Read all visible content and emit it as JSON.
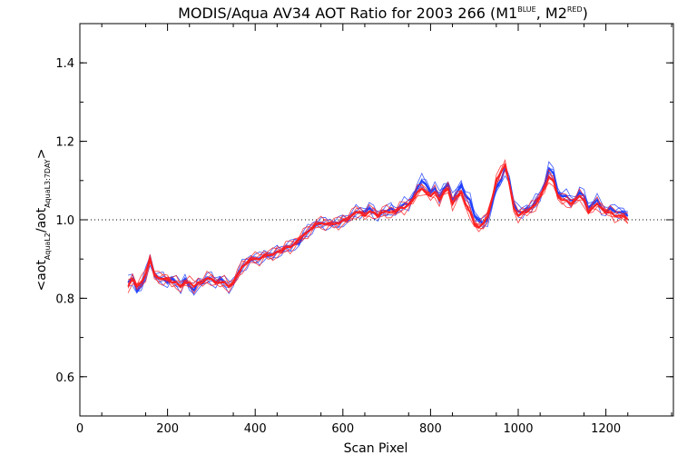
{
  "chart_data": {
    "type": "line",
    "title_main": "MODIS/Aqua AV34 AOT Ratio for 2003 266 (M1",
    "title_sup1": "BLUE",
    "title_mid": ", M2",
    "title_sup2": "RED",
    "title_end": ")",
    "xlabel": "Scan Pixel",
    "ylabel_parts": {
      "open": "<aot",
      "sub1": "AquaL2",
      "slash": "/aot",
      "sub2": "AquaL3:7DAY",
      "close": ">"
    },
    "xlim": [
      0,
      1354
    ],
    "ylim": [
      0.5,
      1.5
    ],
    "x_ticks": [
      0,
      200,
      400,
      600,
      800,
      1000,
      1200
    ],
    "x_tick_labels": [
      "0",
      "200",
      "400",
      "600",
      "800",
      "1000",
      "1200"
    ],
    "y_ticks": [
      0.6,
      0.8,
      1.0,
      1.2,
      1.4
    ],
    "y_tick_labels": [
      "0.6",
      "0.8",
      "1.0",
      "1.2",
      "1.4"
    ],
    "reference_line": 1.0,
    "colors": {
      "M1": "#1f3fff",
      "M2": "#ff1f1f",
      "axes": "#000000"
    },
    "series": [
      {
        "color": "blue",
        "x": [
          110,
          120,
          130,
          140,
          150,
          160,
          170,
          180,
          190,
          200,
          210,
          220,
          230,
          240,
          250,
          260,
          270,
          280,
          290,
          300,
          310,
          320,
          330,
          340,
          350,
          360,
          370,
          380,
          390,
          400,
          410,
          420,
          430,
          440,
          450,
          460,
          470,
          480,
          490,
          500,
          510,
          520,
          530,
          540,
          550,
          560,
          570,
          580,
          590,
          600,
          610,
          620,
          630,
          640,
          650,
          660,
          670,
          680,
          690,
          700,
          710,
          720,
          730,
          740,
          750,
          760,
          770,
          780,
          790,
          800,
          810,
          820,
          830,
          840,
          850,
          860,
          870,
          880,
          890,
          900,
          910,
          920,
          930,
          940,
          950,
          960,
          970,
          980,
          990,
          1000,
          1010,
          1020,
          1030,
          1040,
          1050,
          1060,
          1070,
          1080,
          1090,
          1100,
          1110,
          1120,
          1130,
          1140,
          1150,
          1160,
          1170,
          1180,
          1190,
          1200,
          1210,
          1220,
          1230,
          1240,
          1250
        ],
        "y": [
          0.84,
          0.85,
          0.82,
          0.83,
          0.86,
          0.9,
          0.86,
          0.85,
          0.85,
          0.84,
          0.85,
          0.84,
          0.83,
          0.85,
          0.83,
          0.82,
          0.84,
          0.84,
          0.85,
          0.85,
          0.84,
          0.85,
          0.84,
          0.83,
          0.84,
          0.86,
          0.88,
          0.89,
          0.9,
          0.9,
          0.9,
          0.91,
          0.91,
          0.91,
          0.92,
          0.92,
          0.93,
          0.93,
          0.94,
          0.94,
          0.96,
          0.97,
          0.98,
          0.99,
          0.99,
          0.99,
          0.99,
          0.99,
          0.99,
          1.0,
          1.0,
          1.01,
          1.02,
          1.02,
          1.02,
          1.03,
          1.02,
          1.01,
          1.02,
          1.02,
          1.03,
          1.02,
          1.03,
          1.04,
          1.04,
          1.06,
          1.08,
          1.1,
          1.09,
          1.07,
          1.08,
          1.06,
          1.08,
          1.09,
          1.05,
          1.07,
          1.09,
          1.06,
          1.05,
          1.01,
          1.0,
          0.99,
          1.0,
          1.04,
          1.08,
          1.1,
          1.13,
          1.1,
          1.04,
          1.02,
          1.02,
          1.03,
          1.03,
          1.05,
          1.06,
          1.09,
          1.13,
          1.12,
          1.07,
          1.06,
          1.06,
          1.05,
          1.05,
          1.07,
          1.06,
          1.03,
          1.04,
          1.05,
          1.03,
          1.02,
          1.03,
          1.02,
          1.02,
          1.02,
          1.01
        ]
      },
      {
        "color": "red",
        "x": [
          110,
          120,
          130,
          140,
          150,
          160,
          170,
          180,
          190,
          200,
          210,
          220,
          230,
          240,
          250,
          260,
          270,
          280,
          290,
          300,
          310,
          320,
          330,
          340,
          350,
          360,
          370,
          380,
          390,
          400,
          410,
          420,
          430,
          440,
          450,
          460,
          470,
          480,
          490,
          500,
          510,
          520,
          530,
          540,
          550,
          560,
          570,
          580,
          590,
          600,
          610,
          620,
          630,
          640,
          650,
          660,
          670,
          680,
          690,
          700,
          710,
          720,
          730,
          740,
          750,
          760,
          770,
          780,
          790,
          800,
          810,
          820,
          830,
          840,
          850,
          860,
          870,
          880,
          890,
          900,
          910,
          920,
          930,
          940,
          950,
          960,
          970,
          980,
          990,
          1000,
          1010,
          1020,
          1030,
          1040,
          1050,
          1060,
          1070,
          1080,
          1090,
          1100,
          1110,
          1120,
          1130,
          1140,
          1150,
          1160,
          1170,
          1180,
          1190,
          1200,
          1210,
          1220,
          1230,
          1240,
          1250
        ],
        "y": [
          0.83,
          0.85,
          0.83,
          0.84,
          0.86,
          0.9,
          0.86,
          0.85,
          0.85,
          0.85,
          0.84,
          0.84,
          0.83,
          0.84,
          0.84,
          0.83,
          0.84,
          0.84,
          0.85,
          0.85,
          0.84,
          0.84,
          0.84,
          0.83,
          0.84,
          0.86,
          0.88,
          0.89,
          0.9,
          0.9,
          0.9,
          0.91,
          0.91,
          0.91,
          0.92,
          0.92,
          0.93,
          0.93,
          0.94,
          0.95,
          0.96,
          0.97,
          0.98,
          0.99,
          0.99,
          0.99,
          0.99,
          0.99,
          0.99,
          1.0,
          1.0,
          1.01,
          1.02,
          1.02,
          1.01,
          1.02,
          1.02,
          1.01,
          1.02,
          1.02,
          1.02,
          1.02,
          1.03,
          1.03,
          1.04,
          1.05,
          1.07,
          1.08,
          1.07,
          1.06,
          1.07,
          1.05,
          1.07,
          1.08,
          1.04,
          1.06,
          1.07,
          1.04,
          1.02,
          0.99,
          0.98,
          0.99,
          1.01,
          1.05,
          1.1,
          1.12,
          1.14,
          1.09,
          1.03,
          1.01,
          1.02,
          1.02,
          1.03,
          1.04,
          1.06,
          1.08,
          1.11,
          1.1,
          1.06,
          1.05,
          1.05,
          1.04,
          1.05,
          1.06,
          1.05,
          1.02,
          1.03,
          1.04,
          1.03,
          1.02,
          1.02,
          1.01,
          1.01,
          1.01,
          1.0
        ]
      }
    ]
  }
}
